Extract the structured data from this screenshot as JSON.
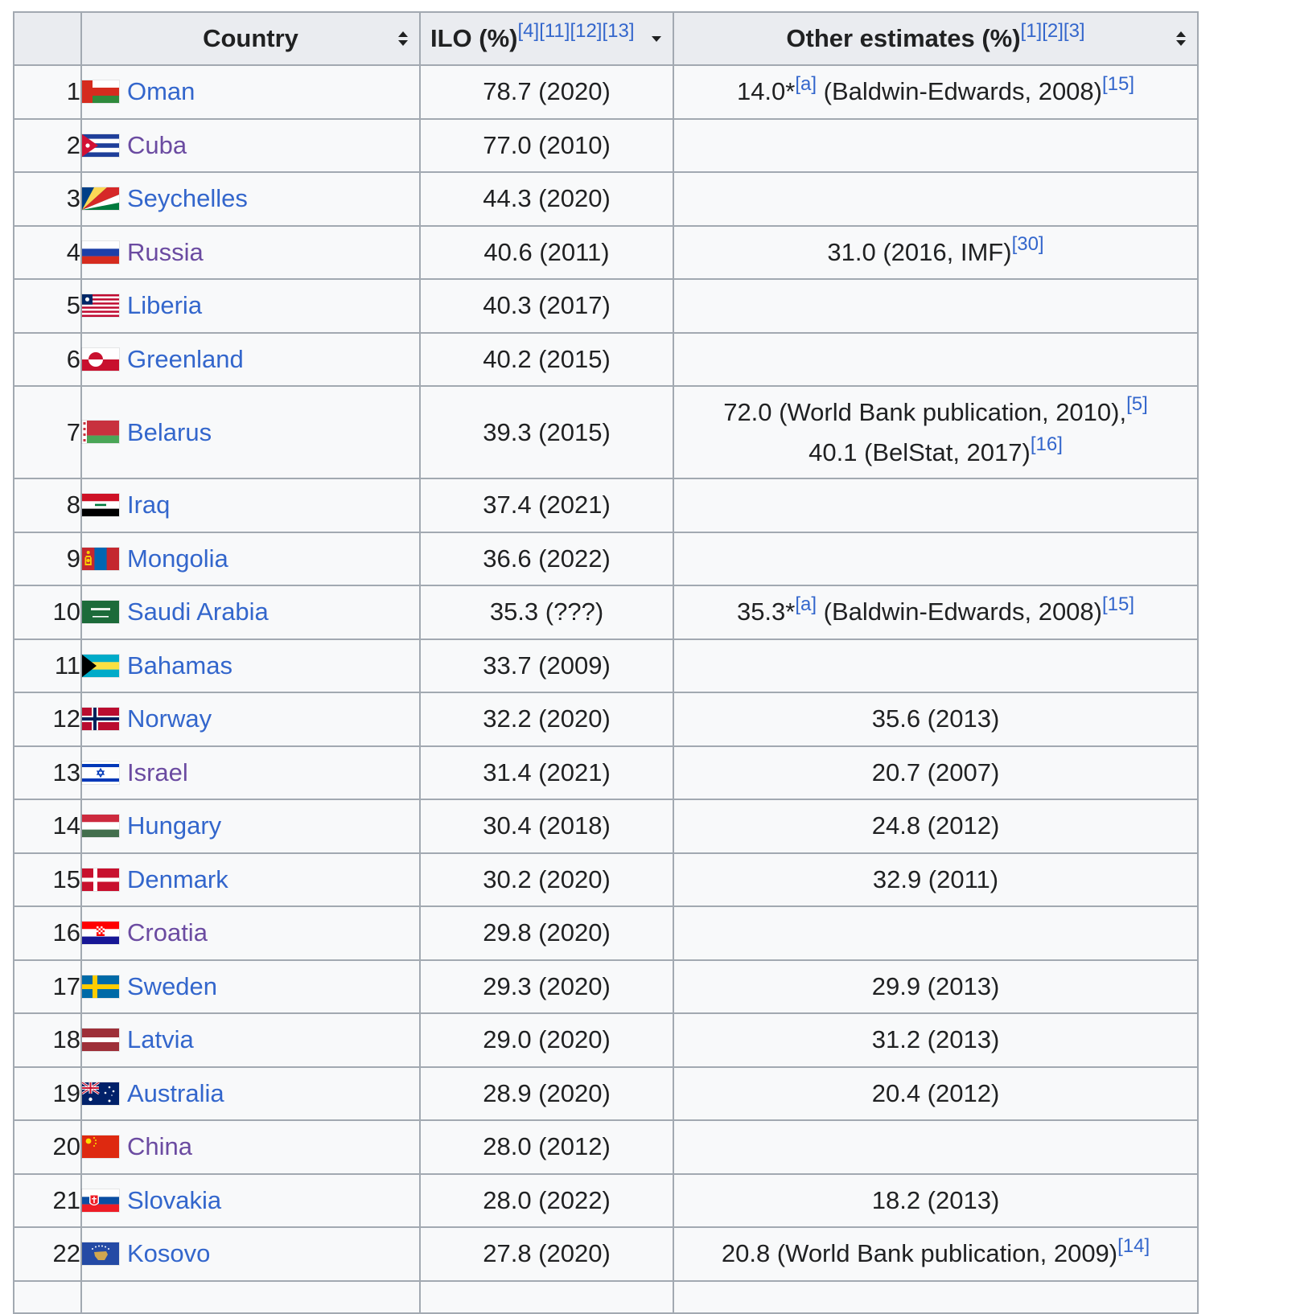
{
  "table": {
    "headers": {
      "rank": "",
      "country": "Country",
      "ilo": "ILO (%)",
      "ilo_refs": [
        "[4]",
        "[11]",
        "[12]",
        "[13]"
      ],
      "other": "Other estimates (%)",
      "other_refs": [
        "[1]",
        "[2]",
        "[3]"
      ]
    },
    "rows": [
      {
        "rank": "1",
        "country": "Oman",
        "flag": "oman-flag",
        "visited": false,
        "ilo": "78.7 (2020)",
        "other": [
          {
            "text": "14.0*",
            "ref": "[a]"
          },
          {
            "text": " (Baldwin-Edwards, 2008)",
            "ref": "[15]"
          }
        ]
      },
      {
        "rank": "2",
        "country": "Cuba",
        "flag": "cuba-flag",
        "visited": true,
        "ilo": "77.0 (2010)",
        "other": []
      },
      {
        "rank": "3",
        "country": "Seychelles",
        "flag": "seychelles-flag",
        "visited": false,
        "ilo": "44.3 (2020)",
        "other": []
      },
      {
        "rank": "4",
        "country": "Russia",
        "flag": "russia-flag",
        "visited": true,
        "ilo": "40.6 (2011)",
        "other": [
          {
            "text": "31.0 (2016, IMF)",
            "ref": "[30]"
          }
        ]
      },
      {
        "rank": "5",
        "country": "Liberia",
        "flag": "liberia-flag",
        "visited": false,
        "ilo": "40.3 (2017)",
        "other": []
      },
      {
        "rank": "6",
        "country": "Greenland",
        "flag": "greenland-flag",
        "visited": false,
        "ilo": "40.2 (2015)",
        "other": []
      },
      {
        "rank": "7",
        "country": "Belarus",
        "flag": "belarus-flag",
        "visited": false,
        "ilo": "39.3 (2015)",
        "tall": true,
        "other": [
          {
            "text": "72.0 (World Bank publication, 2010),",
            "ref": "[5]",
            "break": true
          },
          {
            "text": "40.1 (BelStat, 2017)",
            "ref": "[16]"
          }
        ]
      },
      {
        "rank": "8",
        "country": "Iraq",
        "flag": "iraq-flag",
        "visited": false,
        "ilo": "37.4 (2021)",
        "other": []
      },
      {
        "rank": "9",
        "country": "Mongolia",
        "flag": "mongolia-flag",
        "visited": false,
        "ilo": "36.6 (2022)",
        "other": []
      },
      {
        "rank": "10",
        "country": "Saudi Arabia",
        "flag": "saudi-arabia-flag",
        "visited": false,
        "ilo": "35.3 (???)",
        "other": [
          {
            "text": "35.3*",
            "ref": "[a]"
          },
          {
            "text": " (Baldwin-Edwards, 2008)",
            "ref": "[15]"
          }
        ]
      },
      {
        "rank": "11",
        "country": "Bahamas",
        "flag": "bahamas-flag",
        "visited": false,
        "ilo": "33.7 (2009)",
        "other": []
      },
      {
        "rank": "12",
        "country": "Norway",
        "flag": "norway-flag",
        "visited": false,
        "ilo": "32.2 (2020)",
        "other": [
          {
            "text": "35.6 (2013)",
            "ref": ""
          }
        ]
      },
      {
        "rank": "13",
        "country": "Israel",
        "flag": "israel-flag",
        "visited": true,
        "ilo": "31.4 (2021)",
        "other": [
          {
            "text": "20.7 (2007)",
            "ref": ""
          }
        ]
      },
      {
        "rank": "14",
        "country": "Hungary",
        "flag": "hungary-flag",
        "visited": false,
        "ilo": "30.4 (2018)",
        "other": [
          {
            "text": "24.8 (2012)",
            "ref": ""
          }
        ]
      },
      {
        "rank": "15",
        "country": "Denmark",
        "flag": "denmark-flag",
        "visited": false,
        "ilo": "30.2 (2020)",
        "other": [
          {
            "text": "32.9 (2011)",
            "ref": ""
          }
        ]
      },
      {
        "rank": "16",
        "country": "Croatia",
        "flag": "croatia-flag",
        "visited": true,
        "ilo": "29.8 (2020)",
        "other": []
      },
      {
        "rank": "17",
        "country": "Sweden",
        "flag": "sweden-flag",
        "visited": false,
        "ilo": "29.3 (2020)",
        "other": [
          {
            "text": "29.9 (2013)",
            "ref": ""
          }
        ]
      },
      {
        "rank": "18",
        "country": "Latvia",
        "flag": "latvia-flag",
        "visited": false,
        "ilo": "29.0 (2020)",
        "other": [
          {
            "text": "31.2 (2013)",
            "ref": ""
          }
        ]
      },
      {
        "rank": "19",
        "country": "Australia",
        "flag": "australia-flag",
        "visited": false,
        "ilo": "28.9 (2020)",
        "other": [
          {
            "text": "20.4 (2012)",
            "ref": ""
          }
        ]
      },
      {
        "rank": "20",
        "country": "China",
        "flag": "china-flag",
        "visited": true,
        "ilo": "28.0 (2012)",
        "other": []
      },
      {
        "rank": "21",
        "country": "Slovakia",
        "flag": "slovakia-flag",
        "visited": false,
        "ilo": "28.0 (2022)",
        "other": [
          {
            "text": "18.2 (2013)",
            "ref": ""
          }
        ]
      },
      {
        "rank": "22",
        "country": "Kosovo",
        "flag": "kosovo-flag",
        "visited": false,
        "ilo": "27.8 (2020)",
        "other": [
          {
            "text": "20.8 (World Bank publication, 2009)",
            "ref": "[14]"
          }
        ]
      }
    ]
  },
  "colors": {
    "link": "#3366cc",
    "visited_link": "#6b4ba1",
    "header_bg": "#eaecf0",
    "cell_bg": "#f8f9fa",
    "border": "#a2a9b1"
  }
}
